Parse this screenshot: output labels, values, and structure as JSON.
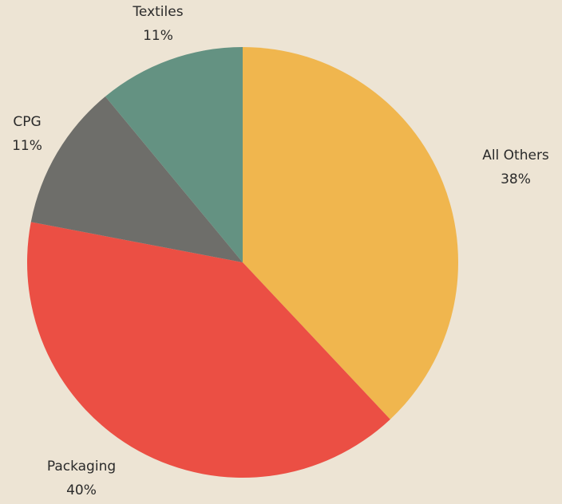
{
  "page": {
    "background": "#ede4d4"
  },
  "chart_data": {
    "type": "pie",
    "title": "",
    "categories": [
      "All Others",
      "Packaging",
      "CPG",
      "Textiles"
    ],
    "values": [
      38,
      40,
      11,
      11
    ],
    "value_labels": [
      "38%",
      "40%",
      "11%",
      "11%"
    ],
    "colors": [
      "#f0b64e",
      "#eb4f44",
      "#6e6e6a",
      "#649282"
    ],
    "start_angle": "12 o'clock",
    "direction": "clockwise",
    "legend": "none"
  }
}
